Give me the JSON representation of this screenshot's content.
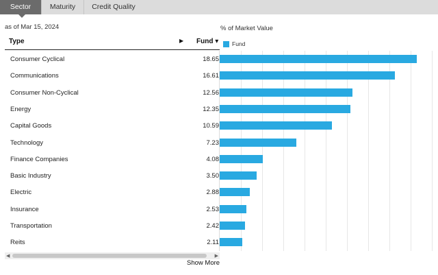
{
  "tabs": [
    {
      "label": "Sector",
      "active": true
    },
    {
      "label": "Maturity",
      "active": false
    },
    {
      "label": "Credit Quality",
      "active": false
    }
  ],
  "as_of": "as of Mar 15, 2024",
  "axis_title": "% of Market Value",
  "legend": {
    "label": "Fund",
    "color": "#29a9e1"
  },
  "table": {
    "header_type": "Type",
    "header_arrow": "▶",
    "header_fund": "Fund ▾"
  },
  "chart_data": {
    "type": "bar",
    "orientation": "horizontal",
    "categories": [
      "Consumer Cyclical",
      "Communications",
      "Consumer Non-Cyclical",
      "Energy",
      "Capital Goods",
      "Technology",
      "Finance Companies",
      "Basic Industry",
      "Electric",
      "Insurance",
      "Transportation",
      "Reits"
    ],
    "series": [
      {
        "name": "Fund",
        "values": [
          18.65,
          16.61,
          12.56,
          12.35,
          10.59,
          7.23,
          4.08,
          3.5,
          2.88,
          2.53,
          2.42,
          2.11
        ],
        "color": "#29a9e1"
      }
    ],
    "value_labels": [
      "18.65",
      "16.61",
      "12.56",
      "12.35",
      "10.59",
      "7.23",
      "4.08",
      "3.50",
      "2.88",
      "2.53",
      "2.42",
      "2.11"
    ],
    "xlim": [
      0,
      20
    ],
    "grid": true
  },
  "show_more": "Show More"
}
